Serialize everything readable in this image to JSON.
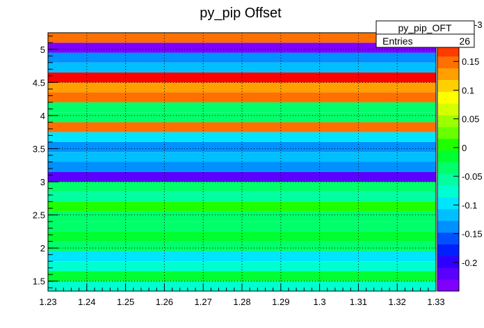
{
  "chart_data": {
    "type": "heatmap",
    "title": "py_pip Offset",
    "x_ticks": [
      "1.23",
      "1.24",
      "1.25",
      "1.26",
      "1.27",
      "1.28",
      "1.29",
      "1.3",
      "1.31",
      "1.32",
      "1.33"
    ],
    "y_ticks": [
      "1.5",
      "2",
      "2.5",
      "3",
      "3.5",
      "4",
      "4.5",
      "5"
    ],
    "xlim": [
      1.23,
      1.33
    ],
    "ylim": [
      1.35,
      5.25
    ],
    "bin_width_y": 0.15,
    "z_range": [
      -0.25,
      0.2
    ],
    "z_exponent": "-3",
    "z_ticks": [
      "0.15",
      "0.1",
      "0.05",
      "0",
      "-0.05",
      "-0.1",
      "-0.15",
      "-0.2"
    ],
    "y_bin_low_edges": [
      1.35,
      1.5,
      1.65,
      1.8,
      1.95,
      2.1,
      2.25,
      2.4,
      2.55,
      2.7,
      2.85,
      3.0,
      3.15,
      3.3,
      3.45,
      3.6,
      3.75,
      3.9,
      4.05,
      4.2,
      4.35,
      4.5,
      4.65,
      4.8,
      4.95,
      5.1
    ],
    "z_values": [
      -0.07,
      -0.02,
      -0.08,
      -0.09,
      -0.03,
      -0.02,
      -0.04,
      -0.03,
      0.01,
      -0.05,
      -0.03,
      -0.22,
      -0.13,
      -0.11,
      -0.13,
      -0.09,
      0.14,
      -0.04,
      -0.03,
      0.14,
      0.12,
      0.19,
      -0.12,
      -0.14,
      -0.245,
      0.14
    ],
    "palette": [
      "#7f00ff",
      "#5a00ff",
      "#2f00ff",
      "#0020ff",
      "#0050ff",
      "#0090ff",
      "#00bfff",
      "#00e5ff",
      "#00ffd0",
      "#00ffa0",
      "#00ff6a",
      "#00ff30",
      "#1fff00",
      "#6aff00",
      "#9bff00",
      "#d4ff00",
      "#ffff00",
      "#ffd000",
      "#ffa000",
      "#ff7000",
      "#ff3c00",
      "#ff0000"
    ]
  },
  "stats_box": {
    "name": "py_pip_OFT",
    "entries_label": "Entries",
    "entries_value": "26"
  }
}
